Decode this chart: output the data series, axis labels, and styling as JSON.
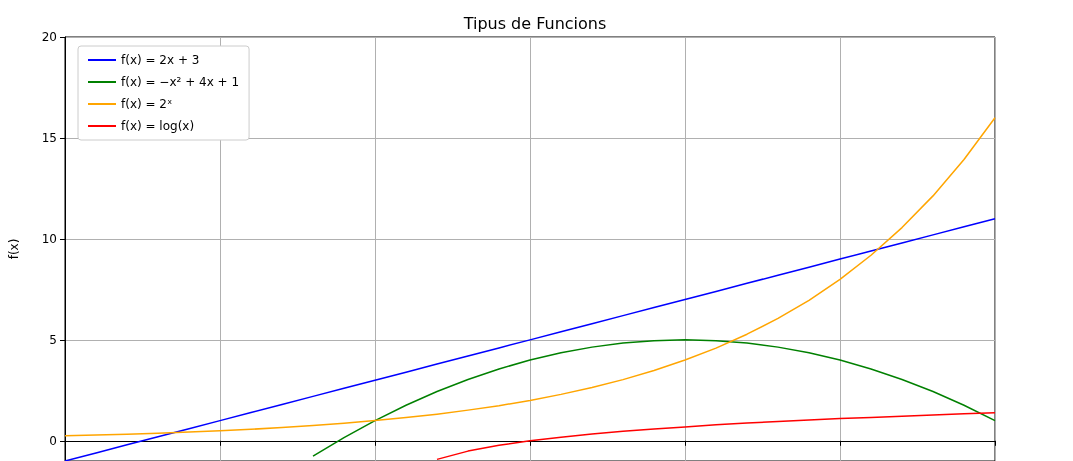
{
  "chart_data": {
    "type": "line",
    "title": "Tipus de Funcions",
    "ylabel": "f(x)",
    "categories": [
      null,
      null,
      null,
      null,
      null,
      null,
      null,
      null,
      null,
      null,
      null,
      null,
      null,
      null,
      null,
      null,
      null,
      null,
      null,
      null,
      null,
      null,
      null,
      null,
      null,
      null,
      null,
      null,
      null,
      null,
      null
    ],
    "series": [
      {
        "name": "f(x) = 2x + 3",
        "color": "#0000ff",
        "values": [
          -1,
          -0.6,
          -0.2,
          0.2,
          0.6,
          1,
          1.4,
          1.8,
          2.2,
          2.6,
          3,
          3.4,
          3.8,
          4.2,
          4.6,
          5,
          5.4,
          5.8,
          6.2,
          6.6,
          7,
          7.4,
          7.8,
          8.2,
          8.6,
          9,
          9.4,
          9.8,
          10.2,
          10.6,
          11
        ]
      },
      {
        "name": "f(x) = −x² + 4x + 1",
        "color": "#008000",
        "values": [
          null,
          null,
          null,
          null,
          null,
          null,
          null,
          null,
          -0.76,
          0.16,
          1,
          1.76,
          2.44,
          3.04,
          3.56,
          4,
          4.36,
          4.64,
          4.84,
          4.96,
          5,
          4.96,
          4.84,
          4.64,
          4.36,
          4,
          3.56,
          3.04,
          2.44,
          1.76,
          1
        ]
      },
      {
        "name": "f(x) = 2ˣ",
        "color": "#ffa500",
        "values": [
          0.25,
          0.29,
          0.33,
          0.38,
          0.44,
          0.5,
          0.57,
          0.66,
          0.76,
          0.87,
          1,
          1.15,
          1.32,
          1.52,
          1.74,
          2,
          2.3,
          2.64,
          3.03,
          3.48,
          4,
          4.59,
          5.28,
          6.06,
          6.96,
          8,
          9.19,
          10.56,
          12.13,
          13.93,
          16
        ]
      },
      {
        "name": "f(x) = log(x)",
        "color": "#ff0000",
        "values": [
          null,
          null,
          null,
          null,
          null,
          null,
          null,
          null,
          null,
          null,
          null,
          null,
          -0.92,
          -0.51,
          -0.22,
          0,
          0.18,
          0.34,
          0.47,
          0.59,
          0.69,
          0.79,
          0.88,
          0.96,
          1.03,
          1.1,
          1.16,
          1.22,
          1.28,
          1.34,
          1.39
        ]
      }
    ],
    "ylim": [
      -1,
      20
    ],
    "yticks": [
      0,
      5,
      10,
      15,
      20
    ],
    "grid": true,
    "legend": "top left",
    "marker": "none",
    "line_style": "solid",
    "tick_labels": "y"
  }
}
